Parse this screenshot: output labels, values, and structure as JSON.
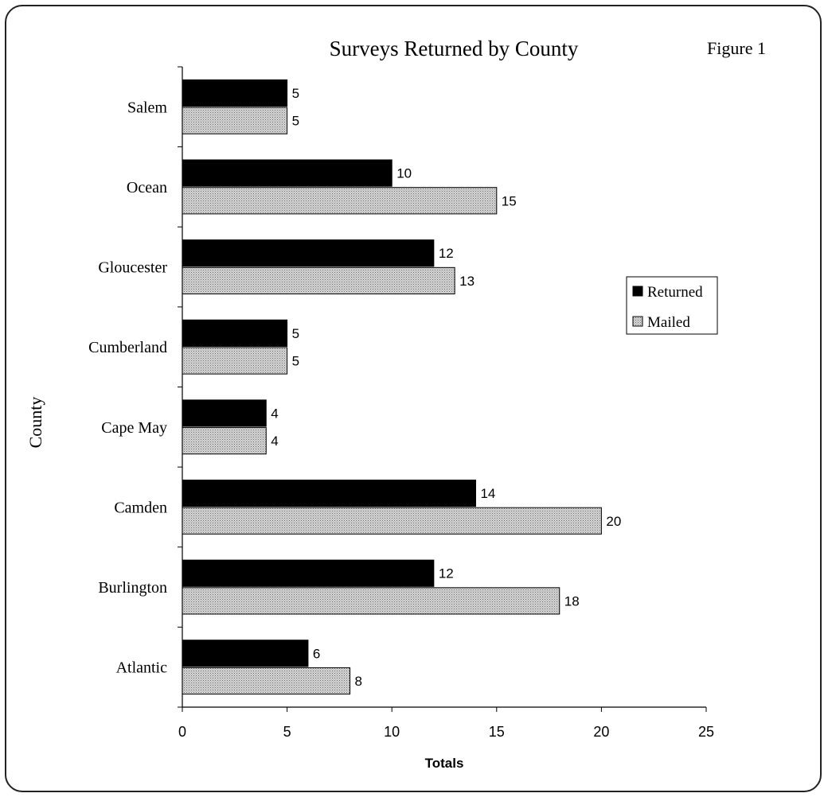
{
  "chart_data": {
    "type": "bar",
    "orientation": "horizontal",
    "title": "Surveys Returned by County",
    "figure_label": "Figure 1",
    "xlabel": "Totals",
    "ylabel": "County",
    "categories": [
      "Salem",
      "Ocean",
      "Gloucester",
      "Cumberland",
      "Cape May",
      "Camden",
      "Burlington",
      "Atlantic"
    ],
    "series": [
      {
        "name": "Returned",
        "values": [
          5,
          10,
          12,
          5,
          4,
          14,
          12,
          6
        ],
        "color": "#000000",
        "pattern": "solid"
      },
      {
        "name": "Mailed",
        "values": [
          5,
          15,
          13,
          5,
          4,
          20,
          18,
          8
        ],
        "color": "#c8c8c8",
        "pattern": "dotted"
      }
    ],
    "xlim": [
      0,
      25
    ],
    "xticks": [
      0,
      5,
      10,
      15,
      20,
      25
    ],
    "grid": false,
    "data_labels": true,
    "legend_position": "right"
  }
}
